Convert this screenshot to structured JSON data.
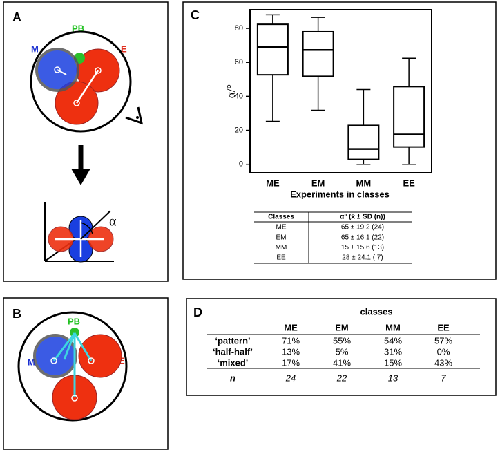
{
  "panels": {
    "A": {
      "letter": "A",
      "pb": "PB",
      "m": "M",
      "e": "E",
      "alpha": "α"
    },
    "B": {
      "letter": "B",
      "pb": "PB",
      "m": "M",
      "e": "E"
    },
    "C": {
      "letter": "C"
    },
    "D": {
      "letter": "D"
    }
  },
  "chart_data": {
    "type": "box",
    "ylabel": "α/°",
    "xlabel": "Experiments in classes",
    "categories": [
      "ME",
      "EM",
      "MM",
      "EE"
    ],
    "color": "#000000",
    "boxes": [
      {
        "min": 25.3,
        "q1": 52.7,
        "median": 69,
        "q3": 82.4,
        "max": 88
      },
      {
        "min": 31.8,
        "q1": 51.8,
        "median": 67.3,
        "q3": 78,
        "max": 86.5
      },
      {
        "min": 0,
        "q1": 2.9,
        "median": 9,
        "q3": 22.9,
        "max": 44
      },
      {
        "min": 0,
        "q1": 10.2,
        "median": 17.6,
        "q3": 45.7,
        "max": 62.4
      }
    ],
    "ylim": [
      -5,
      91
    ],
    "yticks": [
      0,
      20,
      40,
      60,
      80
    ]
  },
  "table_c": {
    "header": [
      "Classes",
      "α° (x̄ ± SD (n))"
    ],
    "rows": [
      [
        "ME",
        "65 ± 19.2 (24)"
      ],
      [
        "EM",
        "65 ± 16.1 (22)"
      ],
      [
        "MM",
        "15 ± 15.6 (13)"
      ],
      [
        "EE",
        "28 ± 24.1 ( 7)"
      ]
    ]
  },
  "table_d": {
    "title": "classes",
    "header": [
      "ME",
      "EM",
      "MM",
      "EE"
    ],
    "rows": [
      [
        "‘pattern’",
        "71%",
        "55%",
        "54%",
        "57%"
      ],
      [
        "‘half-half’",
        "13%",
        "5%",
        "31%",
        "0%"
      ],
      [
        "‘mixed’",
        "17%",
        "41%",
        "15%",
        "43%"
      ],
      [
        "n",
        "24",
        "22",
        "13",
        "7"
      ]
    ]
  }
}
